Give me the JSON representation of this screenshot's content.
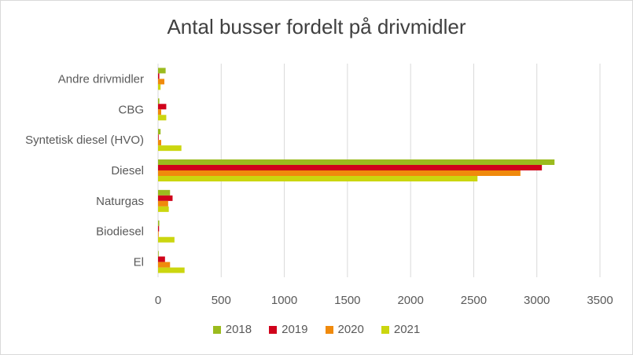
{
  "chart_data": {
    "type": "bar",
    "orientation": "horizontal",
    "title": "Antal busser fordelt på drivmidler",
    "xlabel": "",
    "ylabel": "",
    "categories": [
      "El",
      "Biodiesel",
      "Naturgas",
      "Diesel",
      "Syntetisk diesel (HVO)",
      "CBG",
      "Andre drivmidler"
    ],
    "series": [
      {
        "name": "2018",
        "color": "#9bbb1e",
        "values": [
          5,
          10,
          95,
          3140,
          20,
          10,
          60
        ]
      },
      {
        "name": "2019",
        "color": "#d0021b",
        "values": [
          55,
          8,
          115,
          3040,
          5,
          65,
          10
        ]
      },
      {
        "name": "2020",
        "color": "#f08a0c",
        "values": [
          95,
          5,
          80,
          2870,
          25,
          25,
          50
        ]
      },
      {
        "name": "2021",
        "color": "#cbd60f",
        "values": [
          210,
          130,
          85,
          2530,
          185,
          65,
          20
        ]
      }
    ],
    "xlim": [
      0,
      3500
    ],
    "xticks": [
      "0",
      "500",
      "1000",
      "1500",
      "2000",
      "2500",
      "3000",
      "3500"
    ],
    "grid": true,
    "legend_position": "bottom"
  }
}
